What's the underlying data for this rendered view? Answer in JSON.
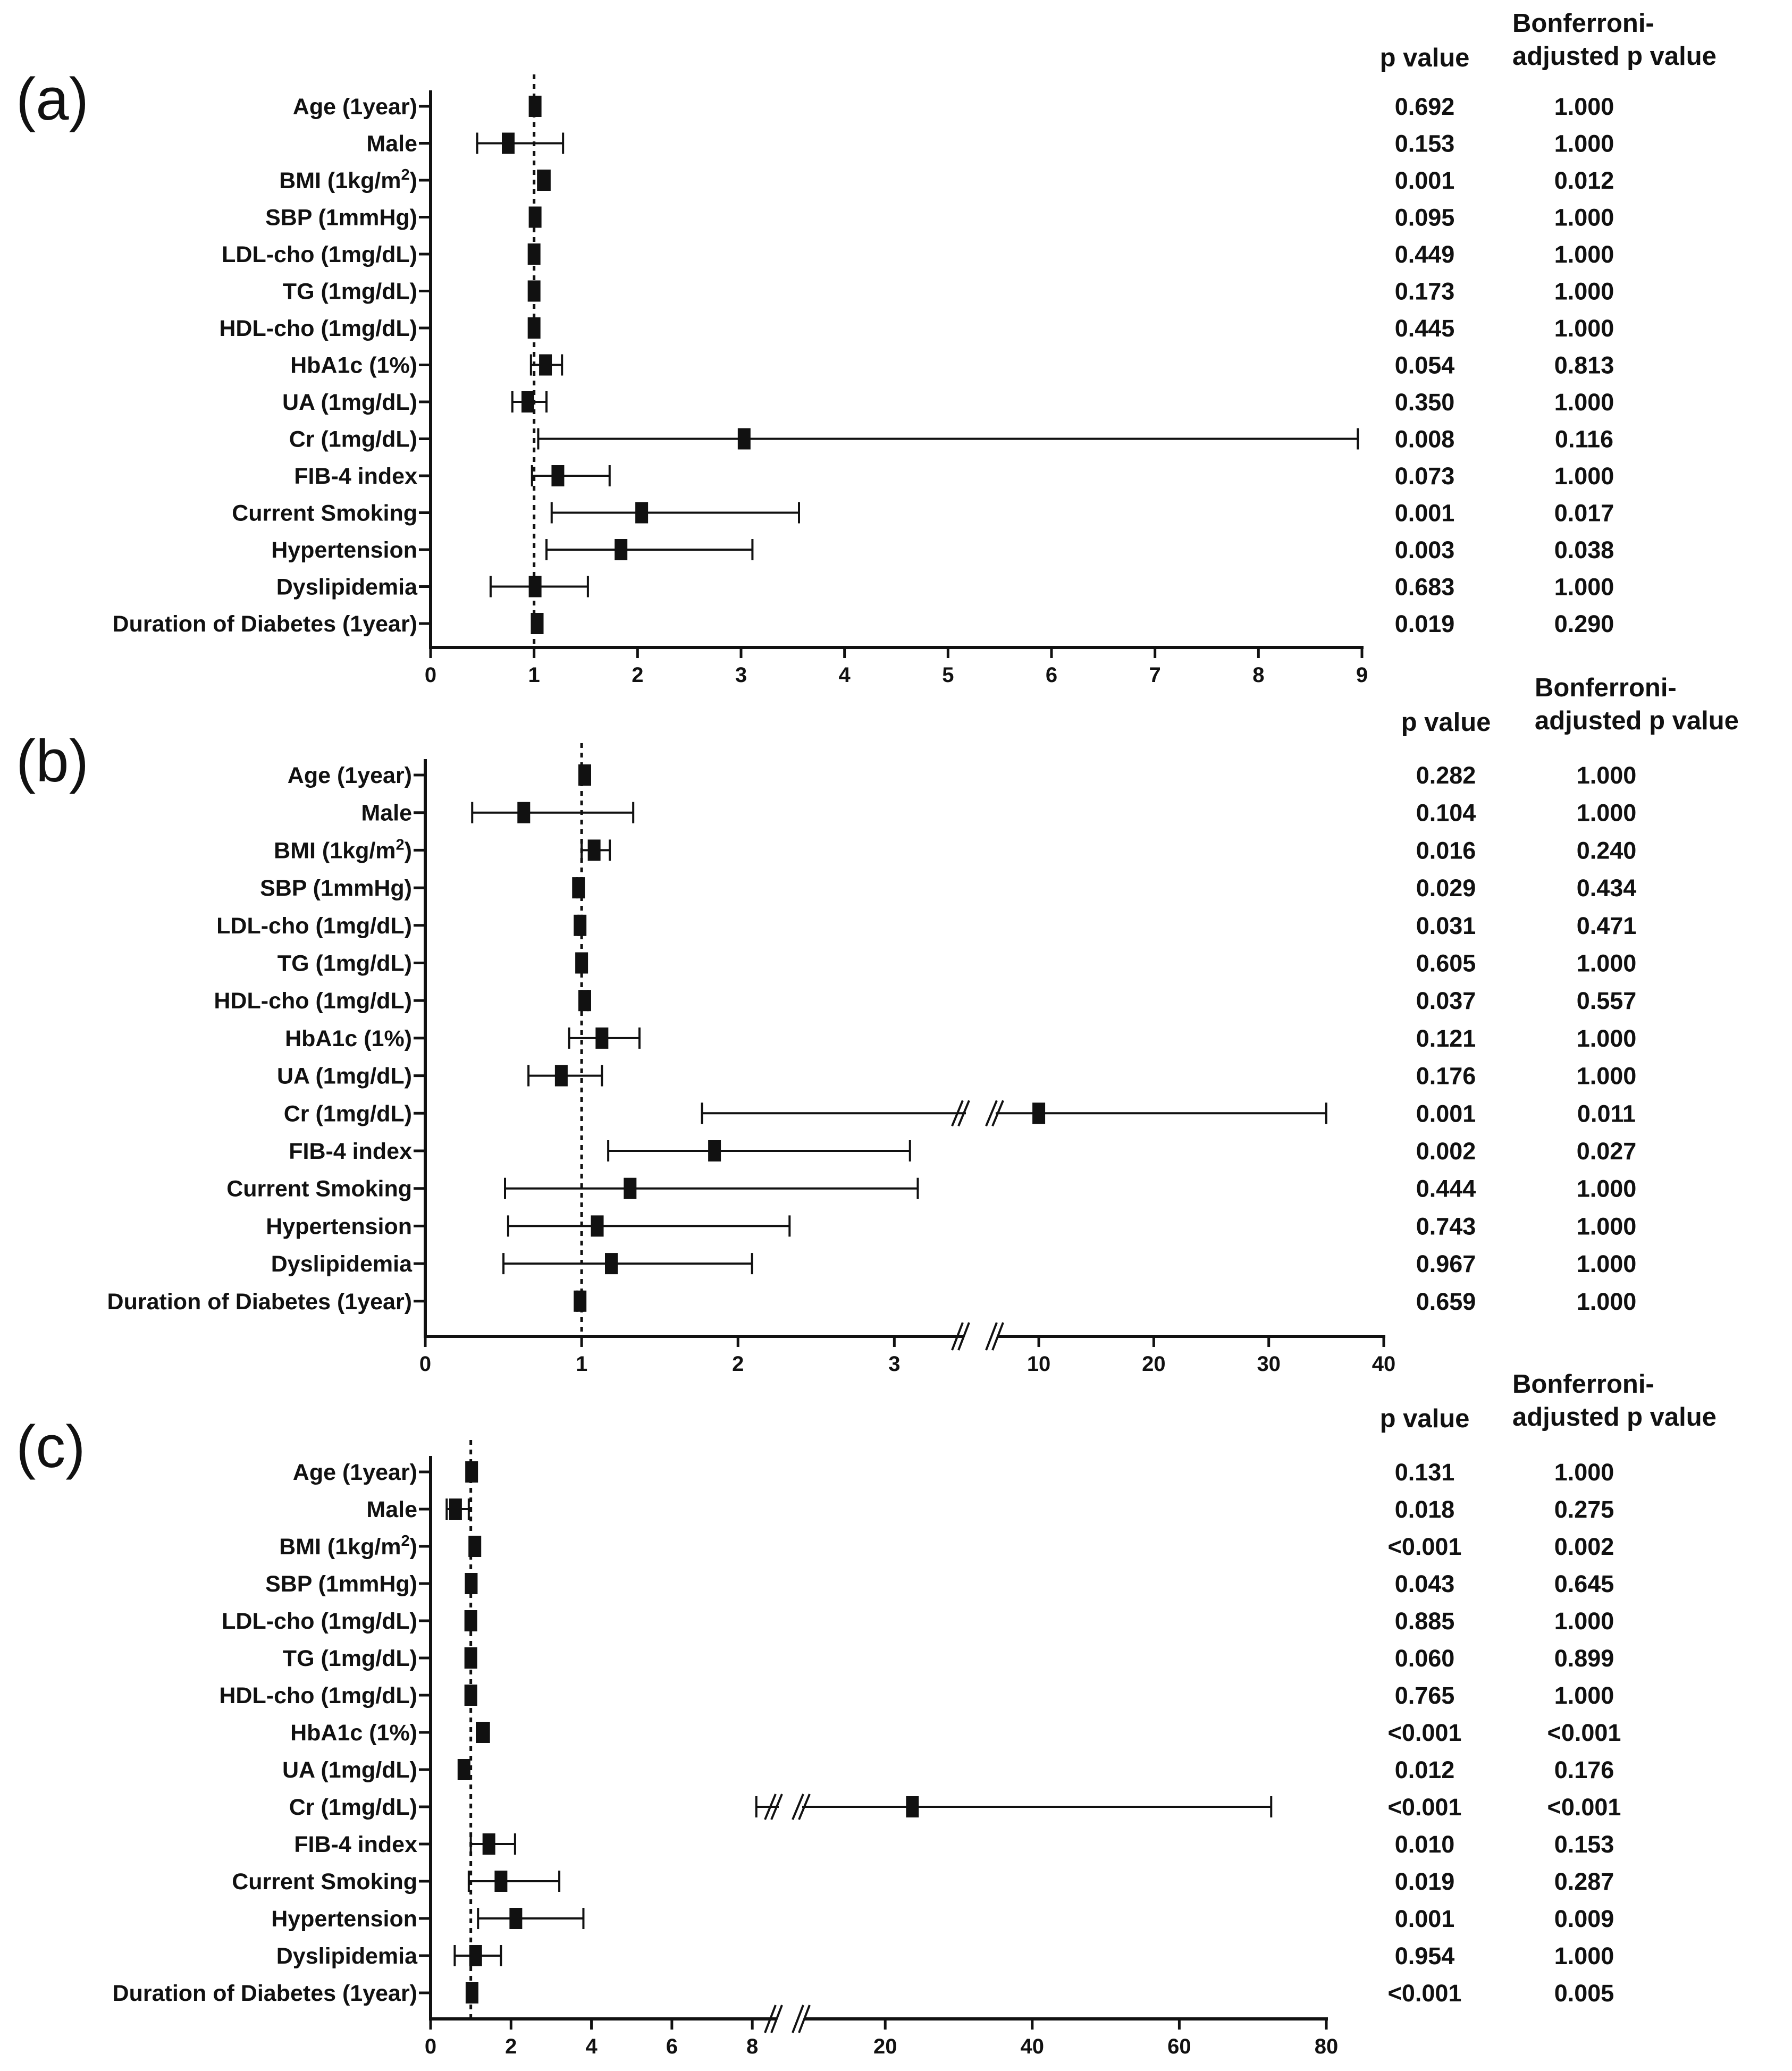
{
  "figure": {
    "column_headers": {
      "p": "p value",
      "adj_line1": "Bonferroni-",
      "adj_line2": "adjusted p value"
    }
  },
  "chart_data": [
    {
      "type": "forest",
      "panel_label": "(a)",
      "reference_line": 1,
      "xlim": [
        0,
        9
      ],
      "ticks": [
        {
          "v": 0,
          "label": "0"
        },
        {
          "v": 1,
          "label": "1"
        },
        {
          "v": 2,
          "label": "2"
        },
        {
          "v": 3,
          "label": "3"
        },
        {
          "v": 4,
          "label": "4"
        },
        {
          "v": 5,
          "label": "5"
        },
        {
          "v": 6,
          "label": "6"
        },
        {
          "v": 7,
          "label": "7"
        },
        {
          "v": 8,
          "label": "8"
        },
        {
          "v": 9,
          "label": "9"
        }
      ],
      "rows": [
        {
          "label": "Age (1year)",
          "est": 1.01,
          "lo": 0.98,
          "hi": 1.04,
          "p": "0.692",
          "adj": "1.000"
        },
        {
          "label": "Male",
          "est": 0.75,
          "lo": 0.45,
          "hi": 1.28,
          "p": "0.153",
          "adj": "1.000"
        },
        {
          "label": "BMI (1kg/m",
          "sup": "2",
          "label_end": ")",
          "est": 1.09,
          "lo": 1.04,
          "hi": 1.15,
          "p": "0.001",
          "adj": "0.012"
        },
        {
          "label": "SBP (1mmHg)",
          "est": 1.01,
          "lo": 1.0,
          "hi": 1.03,
          "p": "0.095",
          "adj": "1.000"
        },
        {
          "label": "LDL-cho (1mg/dL)",
          "est": 1.0,
          "lo": 1.0,
          "hi": 1.01,
          "p": "0.449",
          "adj": "1.000"
        },
        {
          "label": "TG (1mg/dL)",
          "est": 1.0,
          "lo": 1.0,
          "hi": 1.0,
          "p": "0.173",
          "adj": "1.000"
        },
        {
          "label": "HDL-cho (1mg/dL)",
          "est": 1.0,
          "lo": 0.99,
          "hi": 1.01,
          "p": "0.445",
          "adj": "1.000"
        },
        {
          "label": "HbA1c (1%)",
          "est": 1.11,
          "lo": 0.97,
          "hi": 1.27,
          "p": "0.054",
          "adj": "0.813"
        },
        {
          "label": "UA (1mg/dL)",
          "est": 0.94,
          "lo": 0.79,
          "hi": 1.12,
          "p": "0.350",
          "adj": "1.000"
        },
        {
          "label": "Cr (1mg/dL)",
          "est": 3.03,
          "lo": 1.04,
          "hi": 8.96,
          "p": "0.008",
          "adj": "0.116"
        },
        {
          "label": "FIB-4 index",
          "est": 1.23,
          "lo": 0.98,
          "hi": 1.73,
          "p": "0.073",
          "adj": "1.000"
        },
        {
          "label": "Current Smoking",
          "est": 2.04,
          "lo": 1.17,
          "hi": 3.56,
          "p": "0.001",
          "adj": "0.017"
        },
        {
          "label": "Hypertension",
          "est": 1.84,
          "lo": 1.12,
          "hi": 3.11,
          "p": "0.003",
          "adj": "0.038"
        },
        {
          "label": "Dyslipidemia",
          "est": 1.01,
          "lo": 0.58,
          "hi": 1.52,
          "p": "0.683",
          "adj": "1.000"
        },
        {
          "label": "Duration of Diabetes (1year)",
          "est": 1.03,
          "lo": 1.0,
          "hi": 1.06,
          "p": "0.019",
          "adj": "0.290"
        }
      ]
    },
    {
      "type": "forest",
      "panel_label": "(b)",
      "reference_line": 1,
      "xlim": [
        0,
        40
      ],
      "axis_break": [
        3.4,
        7.5
      ],
      "ticks": [
        {
          "v": 0,
          "label": "0"
        },
        {
          "v": 1,
          "label": "1"
        },
        {
          "v": 2,
          "label": "2"
        },
        {
          "v": 3,
          "label": "3"
        },
        {
          "v": 10,
          "label": "10"
        },
        {
          "v": 20,
          "label": "20"
        },
        {
          "v": 30,
          "label": "30"
        },
        {
          "v": 40,
          "label": "40"
        }
      ],
      "rows": [
        {
          "label": "Age (1year)",
          "est": 1.02,
          "lo": 0.99,
          "hi": 1.05,
          "p": "0.282",
          "adj": "1.000"
        },
        {
          "label": "Male",
          "est": 0.63,
          "lo": 0.3,
          "hi": 1.33,
          "p": "0.104",
          "adj": "1.000"
        },
        {
          "label": "BMI (1kg/m",
          "sup": "2",
          "label_end": ")",
          "est": 1.08,
          "lo": 1.0,
          "hi": 1.18,
          "p": "0.016",
          "adj": "0.240"
        },
        {
          "label": "SBP (1mmHg)",
          "est": 0.98,
          "lo": 0.97,
          "hi": 1.0,
          "p": "0.029",
          "adj": "0.434"
        },
        {
          "label": "LDL-cho (1mg/dL)",
          "est": 0.99,
          "lo": 0.98,
          "hi": 1.0,
          "p": "0.031",
          "adj": "0.471"
        },
        {
          "label": "TG (1mg/dL)",
          "est": 1.0,
          "lo": 1.0,
          "hi": 1.01,
          "p": "0.605",
          "adj": "1.000"
        },
        {
          "label": "HDL-cho (1mg/dL)",
          "est": 1.02,
          "lo": 1.0,
          "hi": 1.04,
          "p": "0.037",
          "adj": "0.557"
        },
        {
          "label": "HbA1c (1%)",
          "est": 1.13,
          "lo": 0.92,
          "hi": 1.37,
          "p": "0.121",
          "adj": "1.000"
        },
        {
          "label": "UA (1mg/dL)",
          "est": 0.87,
          "lo": 0.66,
          "hi": 1.13,
          "p": "0.176",
          "adj": "1.000"
        },
        {
          "label": "Cr (1mg/dL)",
          "est": 10.0,
          "lo": 1.77,
          "hi": 35.0,
          "p": "0.001",
          "adj": "0.011"
        },
        {
          "label": "FIB-4 index",
          "est": 1.85,
          "lo": 1.17,
          "hi": 3.1,
          "p": "0.002",
          "adj": "0.027"
        },
        {
          "label": "Current Smoking",
          "est": 1.31,
          "lo": 0.51,
          "hi": 3.15,
          "p": "0.444",
          "adj": "1.000"
        },
        {
          "label": "Hypertension",
          "est": 1.1,
          "lo": 0.53,
          "hi": 2.33,
          "p": "0.743",
          "adj": "1.000"
        },
        {
          "label": "Dyslipidemia",
          "est": 1.19,
          "lo": 0.5,
          "hi": 2.09,
          "p": "0.967",
          "adj": "1.000"
        },
        {
          "label": "Duration of Diabetes (1year)",
          "est": 0.99,
          "lo": 0.97,
          "hi": 1.01,
          "p": "0.659",
          "adj": "1.000"
        }
      ]
    },
    {
      "type": "forest",
      "panel_label": "(c)",
      "reference_line": 1,
      "xlim": [
        0,
        80
      ],
      "axis_break": [
        8.5,
        9.5
      ],
      "ticks": [
        {
          "v": 0,
          "label": "0"
        },
        {
          "v": 2,
          "label": "2"
        },
        {
          "v": 4,
          "label": "4"
        },
        {
          "v": 6,
          "label": "6"
        },
        {
          "v": 8,
          "label": "8"
        },
        {
          "v": 20,
          "label": "20"
        },
        {
          "v": 40,
          "label": "40"
        },
        {
          "v": 60,
          "label": "60"
        },
        {
          "v": 80,
          "label": "80"
        }
      ],
      "rows": [
        {
          "label": "Age (1year)",
          "est": 1.02,
          "lo": 0.99,
          "hi": 1.05,
          "p": "0.131",
          "adj": "1.000"
        },
        {
          "label": "Male",
          "est": 0.62,
          "lo": 0.4,
          "hi": 0.95,
          "p": "0.018",
          "adj": "0.275"
        },
        {
          "label": "BMI (1kg/m",
          "sup": "2",
          "label_end": ")",
          "est": 1.1,
          "lo": 1.04,
          "hi": 1.16,
          "p": "<0.001",
          "adj": "0.002"
        },
        {
          "label": "SBP (1mmHg)",
          "est": 1.01,
          "lo": 1.0,
          "hi": 1.03,
          "p": "0.043",
          "adj": "0.645"
        },
        {
          "label": "LDL-cho (1mg/dL)",
          "est": 1.0,
          "lo": 0.99,
          "hi": 1.01,
          "p": "0.885",
          "adj": "1.000"
        },
        {
          "label": "TG (1mg/dL)",
          "est": 1.0,
          "lo": 1.0,
          "hi": 1.01,
          "p": "0.060",
          "adj": "0.899"
        },
        {
          "label": "HDL-cho (1mg/dL)",
          "est": 1.0,
          "lo": 0.99,
          "hi": 1.01,
          "p": "0.765",
          "adj": "1.000"
        },
        {
          "label": "HbA1c (1%)",
          "est": 1.29,
          "lo": 1.15,
          "hi": 1.45,
          "p": "<0.001",
          "adj": "<0.001"
        },
        {
          "label": "UA (1mg/dL)",
          "est": 0.83,
          "lo": 0.72,
          "hi": 0.96,
          "p": "0.012",
          "adj": "0.176"
        },
        {
          "label": "Cr (1mg/dL)",
          "est": 23.7,
          "lo": 8.1,
          "hi": 72.5,
          "p": "<0.001",
          "adj": "<0.001"
        },
        {
          "label": "FIB-4 index",
          "est": 1.45,
          "lo": 1.0,
          "hi": 2.1,
          "p": "0.010",
          "adj": "0.153"
        },
        {
          "label": "Current Smoking",
          "est": 1.75,
          "lo": 0.95,
          "hi": 3.2,
          "p": "0.019",
          "adj": "0.287"
        },
        {
          "label": "Hypertension",
          "est": 2.12,
          "lo": 1.18,
          "hi": 3.8,
          "p": "0.001",
          "adj": "0.009"
        },
        {
          "label": "Dyslipidemia",
          "est": 1.12,
          "lo": 0.6,
          "hi": 1.75,
          "p": "0.954",
          "adj": "1.000"
        },
        {
          "label": "Duration of Diabetes (1year)",
          "est": 1.03,
          "lo": 1.01,
          "hi": 1.05,
          "p": "<0.001",
          "adj": "0.005"
        }
      ]
    }
  ]
}
